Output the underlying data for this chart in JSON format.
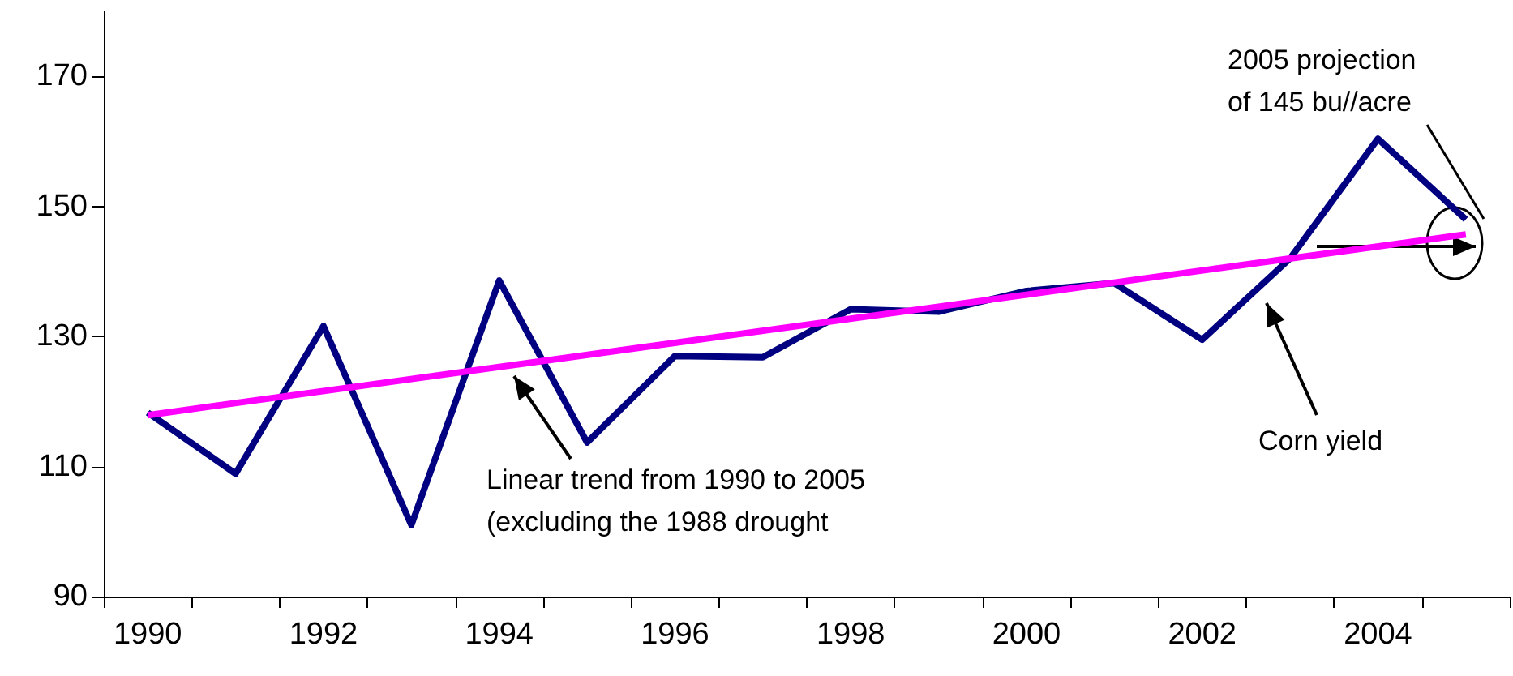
{
  "chart_data": {
    "type": "line",
    "categories": [
      "1990",
      null,
      "1992",
      null,
      "1994",
      null,
      "1996",
      null,
      "1998",
      null,
      "2000",
      null,
      "2002",
      null,
      "2004",
      null
    ],
    "series": [
      {
        "color": "#000080",
        "values": [
          118.3,
          108.9,
          131.6,
          101.0,
          138.6,
          113.7,
          127.0,
          126.8,
          134.2,
          133.8,
          137.0,
          138.2,
          129.5,
          142.0,
          160.4,
          148.0
        ]
      },
      {
        "type": "line",
        "color": "#ff00ff",
        "values": [
          117.9,
          null,
          null,
          null,
          null,
          null,
          null,
          null,
          null,
          null,
          null,
          null,
          null,
          null,
          null,
          145.7
        ]
      }
    ],
    "ylim": [
      90,
      180
    ],
    "yticks": [
      90,
      110,
      130,
      150,
      170
    ],
    "marker": "none",
    "line_style": "solid",
    "annotations": [
      "Linear trend from 1990 to 2005\n(excluding the 1988 drought",
      "Corn yield",
      "2005 projection\nof 145 bu//acre"
    ]
  }
}
